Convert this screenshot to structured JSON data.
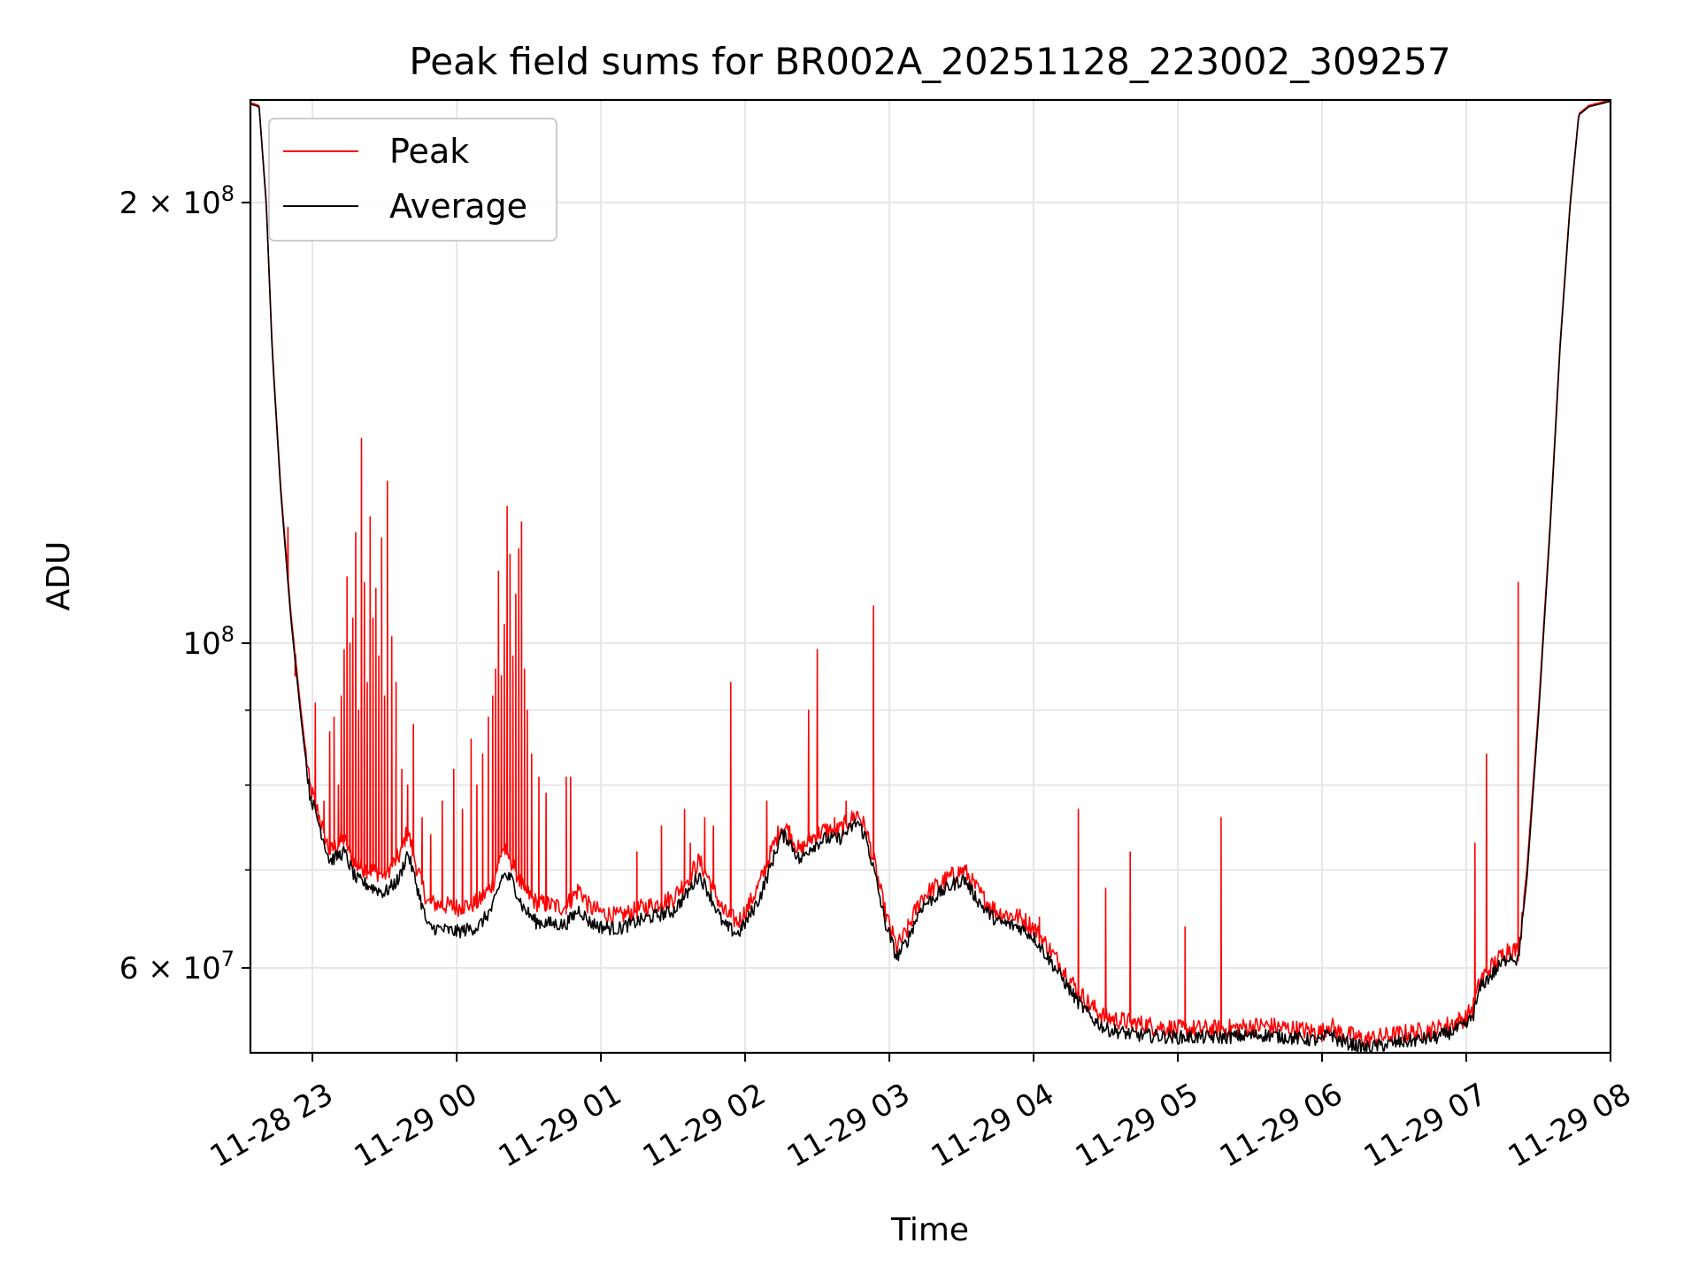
{
  "chart_data": {
    "type": "line",
    "title": "Peak field sums for BR002A_20251128_223002_309257",
    "xlabel": "Time",
    "ylabel": "ADU",
    "yscale": "log",
    "ylim": [
      52500000,
      235000000
    ],
    "xlim_hours": [
      -0.43,
      9.0
    ],
    "grid": true,
    "legend_position": "top-left",
    "x_ticks": [
      {
        "hours": 0,
        "label": "11-28 23"
      },
      {
        "hours": 1,
        "label": "11-29 00"
      },
      {
        "hours": 2,
        "label": "11-29 01"
      },
      {
        "hours": 3,
        "label": "11-29 02"
      },
      {
        "hours": 4,
        "label": "11-29 03"
      },
      {
        "hours": 5,
        "label": "11-29 04"
      },
      {
        "hours": 6,
        "label": "11-29 05"
      },
      {
        "hours": 7,
        "label": "11-29 06"
      },
      {
        "hours": 8,
        "label": "11-29 07"
      },
      {
        "hours": 9,
        "label": "11-29 08"
      }
    ],
    "y_ticks": [
      {
        "value": 200000000,
        "mantissa": "2",
        "exponent": "8",
        "label": "2 × 10^8"
      },
      {
        "value": 100000000,
        "mantissa": "",
        "exponent": "8",
        "label": "10^8"
      },
      {
        "value": 60000000,
        "mantissa": "6",
        "exponent": "7",
        "label": "6 × 10^7"
      }
    ],
    "y_minor_ticks": [
      70000000,
      80000000,
      90000000
    ],
    "series": [
      {
        "name": "Peak",
        "color": "#ff0000",
        "base": [
          [
            -0.43,
            234000000
          ],
          [
            -0.37,
            233000000
          ],
          [
            -0.32,
            200000000
          ],
          [
            -0.28,
            160000000
          ],
          [
            -0.22,
            128000000
          ],
          [
            -0.15,
            105000000
          ],
          [
            -0.08,
            90000000
          ],
          [
            -0.02,
            80000000
          ],
          [
            0.05,
            76000000
          ],
          [
            0.12,
            72000000
          ],
          [
            0.22,
            73500000
          ],
          [
            0.3,
            70500000
          ],
          [
            0.5,
            69500000
          ],
          [
            0.6,
            71500000
          ],
          [
            0.66,
            74500000
          ],
          [
            0.72,
            70500000
          ],
          [
            0.8,
            66500000
          ],
          [
            1.0,
            66000000
          ],
          [
            1.15,
            66500000
          ],
          [
            1.25,
            68500000
          ],
          [
            1.32,
            72500000
          ],
          [
            1.38,
            71000000
          ],
          [
            1.46,
            68000000
          ],
          [
            1.55,
            66500000
          ],
          [
            1.75,
            66000000
          ],
          [
            1.85,
            68000000
          ],
          [
            1.92,
            66000000
          ],
          [
            2.0,
            65500000
          ],
          [
            2.12,
            65000000
          ],
          [
            2.3,
            66000000
          ],
          [
            2.42,
            66500000
          ],
          [
            2.5,
            67000000
          ],
          [
            2.6,
            69000000
          ],
          [
            2.68,
            71000000
          ],
          [
            2.75,
            69000000
          ],
          [
            2.85,
            65500000
          ],
          [
            2.95,
            64500000
          ],
          [
            3.02,
            66000000
          ],
          [
            3.1,
            68500000
          ],
          [
            3.18,
            72000000
          ],
          [
            3.25,
            75000000
          ],
          [
            3.3,
            74500000
          ],
          [
            3.38,
            72000000
          ],
          [
            3.45,
            73500000
          ],
          [
            3.55,
            74500000
          ],
          [
            3.65,
            74500000
          ],
          [
            3.78,
            76500000
          ],
          [
            3.84,
            74500000
          ],
          [
            3.9,
            70500000
          ],
          [
            3.97,
            65500000
          ],
          [
            4.05,
            62000000
          ],
          [
            4.12,
            63500000
          ],
          [
            4.22,
            67000000
          ],
          [
            4.35,
            68500000
          ],
          [
            4.45,
            69500000
          ],
          [
            4.52,
            70000000
          ],
          [
            4.58,
            68500000
          ],
          [
            4.65,
            67000000
          ],
          [
            4.75,
            65500000
          ],
          [
            4.9,
            65000000
          ],
          [
            5.0,
            64000000
          ],
          [
            5.1,
            62000000
          ],
          [
            5.2,
            60000000
          ],
          [
            5.3,
            58000000
          ],
          [
            5.4,
            56500000
          ],
          [
            5.5,
            55500000
          ],
          [
            5.7,
            55000000
          ],
          [
            6.0,
            54500000
          ],
          [
            6.3,
            54500000
          ],
          [
            6.6,
            54800000
          ],
          [
            7.0,
            54200000
          ],
          [
            7.05,
            55000000
          ],
          [
            7.1,
            54300000
          ],
          [
            7.3,
            53600000
          ],
          [
            7.5,
            54000000
          ],
          [
            7.8,
            54500000
          ],
          [
            8.0,
            55500000
          ],
          [
            8.05,
            56500000
          ],
          [
            8.1,
            59000000
          ],
          [
            8.2,
            60500000
          ],
          [
            8.3,
            62000000
          ],
          [
            8.36,
            61500000
          ],
          [
            8.42,
            70000000
          ],
          [
            8.5,
            90000000
          ],
          [
            8.58,
            120000000
          ],
          [
            8.65,
            160000000
          ],
          [
            8.72,
            200000000
          ],
          [
            8.78,
            230000000
          ],
          [
            8.85,
            233000000
          ],
          [
            9.0,
            235000000
          ]
        ],
        "spikes": [
          [
            -0.17,
            120000000
          ],
          [
            -0.12,
            95000000
          ],
          [
            0.02,
            91000000
          ],
          [
            0.08,
            78000000
          ],
          [
            0.12,
            87000000
          ],
          [
            0.15,
            89000000
          ],
          [
            0.18,
            80000000
          ],
          [
            0.2,
            92000000
          ],
          [
            0.22,
            99000000
          ],
          [
            0.24,
            111000000
          ],
          [
            0.26,
            100000000
          ],
          [
            0.28,
            104000000
          ],
          [
            0.3,
            119000000
          ],
          [
            0.32,
            90000000
          ],
          [
            0.34,
            138000000
          ],
          [
            0.36,
            110000000
          ],
          [
            0.38,
            94000000
          ],
          [
            0.4,
            122000000
          ],
          [
            0.42,
            104000000
          ],
          [
            0.44,
            109000000
          ],
          [
            0.46,
            98000000
          ],
          [
            0.48,
            118000000
          ],
          [
            0.5,
            92000000
          ],
          [
            0.52,
            129000000
          ],
          [
            0.55,
            101000000
          ],
          [
            0.58,
            94000000
          ],
          [
            0.62,
            82000000
          ],
          [
            0.66,
            80000000
          ],
          [
            0.7,
            88000000
          ],
          [
            0.76,
            76000000
          ],
          [
            0.82,
            74000000
          ],
          [
            0.9,
            78000000
          ],
          [
            0.98,
            82000000
          ],
          [
            1.04,
            77000000
          ],
          [
            1.1,
            86000000
          ],
          [
            1.14,
            80000000
          ],
          [
            1.18,
            84000000
          ],
          [
            1.22,
            89000000
          ],
          [
            1.25,
            92000000
          ],
          [
            1.27,
            96000000
          ],
          [
            1.29,
            112000000
          ],
          [
            1.31,
            95000000
          ],
          [
            1.33,
            103000000
          ],
          [
            1.35,
            124000000
          ],
          [
            1.37,
            115000000
          ],
          [
            1.39,
            98000000
          ],
          [
            1.41,
            108000000
          ],
          [
            1.43,
            116000000
          ],
          [
            1.45,
            121000000
          ],
          [
            1.47,
            96000000
          ],
          [
            1.49,
            90000000
          ],
          [
            1.52,
            84000000
          ],
          [
            1.57,
            81000000
          ],
          [
            1.62,
            79000000
          ],
          [
            1.76,
            81000000
          ],
          [
            1.79,
            81000000
          ],
          [
            2.25,
            72000000
          ],
          [
            2.42,
            75000000
          ],
          [
            2.58,
            77000000
          ],
          [
            2.62,
            73000000
          ],
          [
            2.72,
            76000000
          ],
          [
            2.78,
            75000000
          ],
          [
            2.9,
            94000000
          ],
          [
            3.15,
            78000000
          ],
          [
            3.3,
            75000000
          ],
          [
            3.44,
            90000000
          ],
          [
            3.5,
            99000000
          ],
          [
            3.62,
            76000000
          ],
          [
            3.7,
            78000000
          ],
          [
            3.89,
            106000000
          ],
          [
            5.04,
            65000000
          ],
          [
            5.31,
            77000000
          ],
          [
            5.5,
            68000000
          ],
          [
            5.67,
            72000000
          ],
          [
            6.05,
            64000000
          ],
          [
            6.3,
            76000000
          ],
          [
            8.06,
            73000000
          ],
          [
            8.14,
            84000000
          ],
          [
            8.36,
            110000000
          ]
        ]
      },
      {
        "name": "Average",
        "color": "#000000",
        "base": [
          [
            -0.43,
            233500000
          ],
          [
            -0.37,
            232500000
          ],
          [
            -0.32,
            199000000
          ],
          [
            -0.28,
            159000000
          ],
          [
            -0.22,
            127000000
          ],
          [
            -0.15,
            104000000
          ],
          [
            -0.08,
            89000000
          ],
          [
            -0.02,
            79000000
          ],
          [
            0.05,
            75000000
          ],
          [
            0.12,
            71000000
          ],
          [
            0.22,
            72000000
          ],
          [
            0.3,
            69000000
          ],
          [
            0.5,
            67500000
          ],
          [
            0.6,
            69000000
          ],
          [
            0.66,
            72000000
          ],
          [
            0.72,
            68500000
          ],
          [
            0.8,
            64000000
          ],
          [
            1.0,
            63500000
          ],
          [
            1.15,
            64000000
          ],
          [
            1.25,
            66000000
          ],
          [
            1.32,
            69500000
          ],
          [
            1.38,
            69000000
          ],
          [
            1.46,
            66000000
          ],
          [
            1.55,
            64500000
          ],
          [
            1.75,
            64200000
          ],
          [
            1.85,
            65800000
          ],
          [
            1.92,
            64500000
          ],
          [
            2.0,
            64000000
          ],
          [
            2.12,
            63800000
          ],
          [
            2.3,
            64800000
          ],
          [
            2.42,
            65300000
          ],
          [
            2.5,
            65600000
          ],
          [
            2.6,
            67500000
          ],
          [
            2.68,
            69500000
          ],
          [
            2.75,
            67500000
          ],
          [
            2.85,
            64200000
          ],
          [
            2.95,
            63300000
          ],
          [
            3.02,
            64800000
          ],
          [
            3.1,
            67000000
          ],
          [
            3.18,
            70500000
          ],
          [
            3.25,
            74000000
          ],
          [
            3.3,
            73500000
          ],
          [
            3.38,
            71000000
          ],
          [
            3.45,
            72500000
          ],
          [
            3.55,
            73500000
          ],
          [
            3.65,
            73500000
          ],
          [
            3.78,
            75500000
          ],
          [
            3.84,
            73500000
          ],
          [
            3.9,
            69500000
          ],
          [
            3.97,
            64500000
          ],
          [
            4.05,
            61000000
          ],
          [
            4.12,
            62500000
          ],
          [
            4.22,
            66000000
          ],
          [
            4.35,
            67500000
          ],
          [
            4.45,
            68500000
          ],
          [
            4.52,
            69000000
          ],
          [
            4.58,
            67500000
          ],
          [
            4.65,
            66000000
          ],
          [
            4.75,
            64500000
          ],
          [
            4.9,
            64000000
          ],
          [
            5.0,
            63000000
          ],
          [
            5.1,
            61000000
          ],
          [
            5.2,
            59000000
          ],
          [
            5.3,
            57000000
          ],
          [
            5.4,
            55500000
          ],
          [
            5.5,
            54500000
          ],
          [
            5.7,
            54000000
          ],
          [
            6.0,
            53800000
          ],
          [
            6.3,
            53800000
          ],
          [
            6.6,
            54000000
          ],
          [
            7.0,
            53500000
          ],
          [
            7.05,
            54300000
          ],
          [
            7.1,
            53600000
          ],
          [
            7.3,
            52900000
          ],
          [
            7.5,
            53300000
          ],
          [
            7.8,
            53800000
          ],
          [
            8.0,
            54800000
          ],
          [
            8.05,
            55800000
          ],
          [
            8.1,
            58300000
          ],
          [
            8.2,
            59700000
          ],
          [
            8.3,
            61200000
          ],
          [
            8.36,
            60700000
          ],
          [
            8.42,
            69000000
          ],
          [
            8.5,
            89000000
          ],
          [
            8.58,
            119000000
          ],
          [
            8.65,
            159000000
          ],
          [
            8.72,
            199000000
          ],
          [
            8.78,
            229500000
          ],
          [
            8.85,
            232500000
          ],
          [
            9.0,
            234500000
          ]
        ]
      }
    ]
  }
}
